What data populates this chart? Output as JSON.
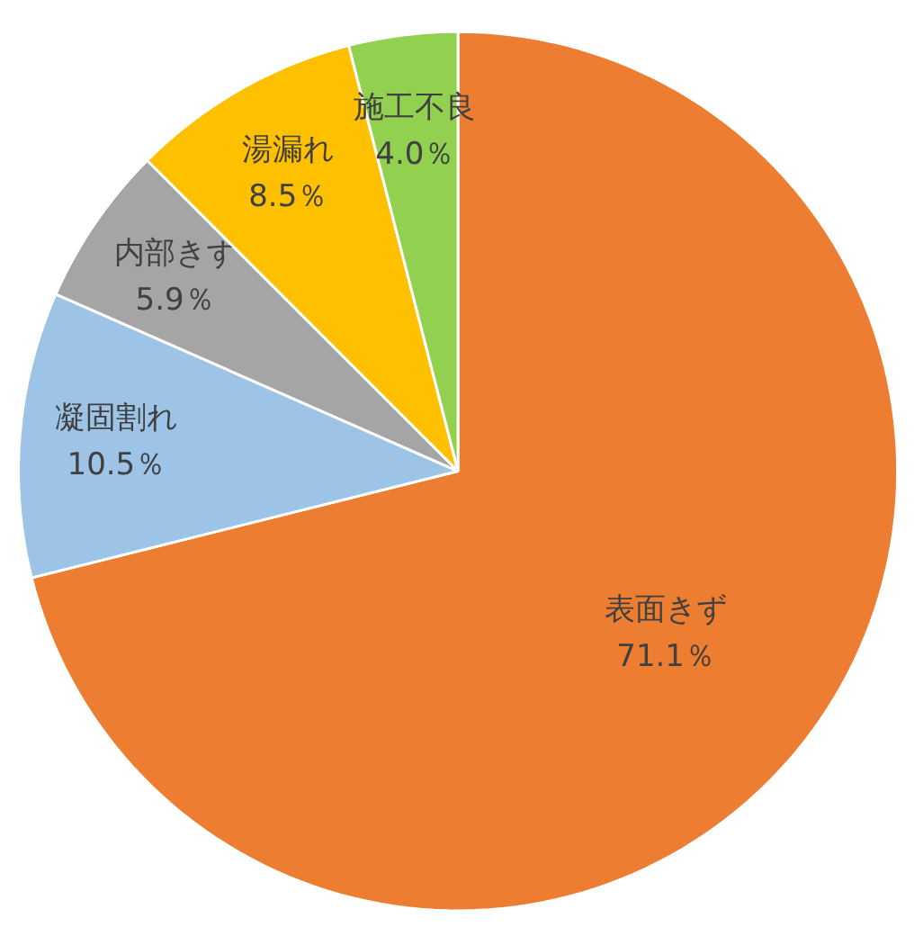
{
  "chart_data": {
    "type": "pie",
    "categories": [
      "表面きず",
      "凝固割れ",
      "内部きず",
      "湯漏れ",
      "施工不良"
    ],
    "values": [
      71.1,
      10.5,
      5.9,
      8.5,
      4.0
    ],
    "colors": [
      "#ed7d31",
      "#9dc3e6",
      "#a5a5a5",
      "#ffc000",
      "#92d050"
    ],
    "value_labels": [
      "71.1％",
      "10.5％",
      "5.9％",
      "8.5％",
      "4.0％"
    ]
  }
}
